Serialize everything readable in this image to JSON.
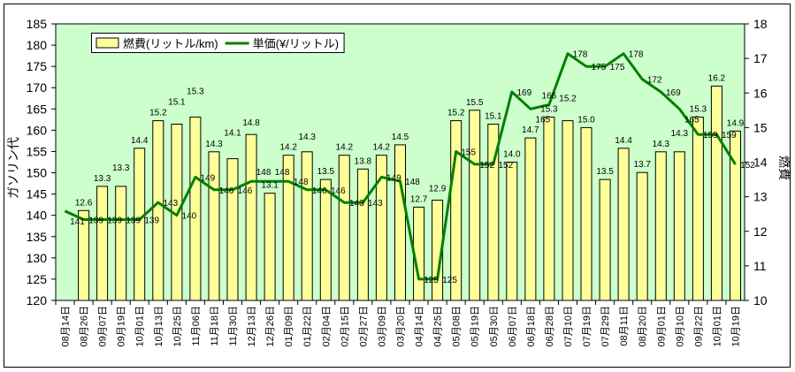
{
  "chart_data": {
    "type": "bar+line",
    "title": "",
    "legend": {
      "placement": "top-left",
      "entries": [
        "燃費(リットル/km)",
        "単価(¥/リットル)"
      ]
    },
    "ylabel_left": "ガソリン代",
    "ylabel_right": "燃費",
    "ylim_left": [
      120,
      185
    ],
    "ylim_right": [
      10,
      18
    ],
    "yticks_left": [
      120,
      125,
      130,
      135,
      140,
      145,
      150,
      155,
      160,
      165,
      170,
      175,
      180,
      185
    ],
    "yticks_right": [
      10,
      11,
      12,
      13,
      14,
      15,
      16,
      17,
      18
    ],
    "categories": [
      "08月14日",
      "08月26日",
      "09月07日",
      "09月19日",
      "10月01日",
      "10月13日",
      "10月25日",
      "11月06日",
      "11月18日",
      "11月30日",
      "12月13日",
      "12月26日",
      "01月09日",
      "01月22日",
      "02月04日",
      "02月15日",
      "02月27日",
      "03月09日",
      "03月20日",
      "04月14日",
      "04月25日",
      "05月08日",
      "05月19日",
      "05月30日",
      "06月07日",
      "06月18日",
      "06月28日",
      "07月10日",
      "07月19日",
      "07月29日",
      "08月11日",
      "08月20日",
      "09月01日",
      "09月10日",
      "09月22日",
      "10月01日",
      "10月19日"
    ],
    "series": [
      {
        "name": "燃費(リットル/km)",
        "type": "bar",
        "axis": "right",
        "color": "#FFFF99",
        "values": [
          null,
          12.6,
          13.3,
          13.3,
          14.4,
          15.2,
          15.1,
          15.3,
          14.3,
          14.1,
          14.8,
          13.1,
          14.2,
          14.3,
          13.5,
          14.2,
          13.8,
          14.2,
          14.5,
          12.7,
          12.9,
          15.2,
          15.5,
          15.1,
          14.0,
          14.7,
          15.3,
          15.2,
          15.0,
          13.5,
          14.4,
          13.7,
          14.3,
          14.3,
          15.3,
          16.2,
          14.9
        ]
      },
      {
        "name": "単価(¥/リットル)",
        "type": "line",
        "axis": "left",
        "color": "#008000",
        "values": [
          141,
          139,
          139,
          139,
          139,
          143,
          140,
          149,
          146,
          146,
          148,
          148,
          148,
          146,
          146,
          143,
          143,
          149,
          148,
          125,
          125,
          155,
          152,
          152,
          169,
          165,
          166,
          178,
          175,
          175,
          178,
          172,
          169,
          165,
          159,
          159,
          152
        ]
      }
    ],
    "colors": {
      "plot_bg": "#CCFFCC",
      "bar": "#FFFF99",
      "line": "#008000"
    }
  }
}
